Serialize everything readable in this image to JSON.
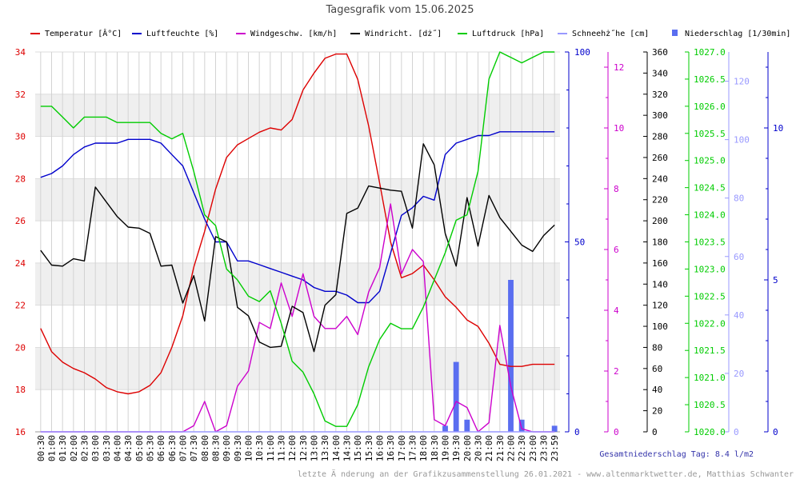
{
  "title": "Tagesgrafik vom 15.06.2025",
  "footer_total": "Gesamtniederschlag Tag: 8.4 l/m2",
  "footer_note": "letzte Ä nderung an der Grafikzusammenstellung 26.01.2021 - www.altenmarktwetter.de, Matthias Schwanter",
  "chart_data": {
    "type": "line",
    "legend_position": "top",
    "grid": true,
    "x": [
      "00:30",
      "01:00",
      "01:30",
      "02:00",
      "02:30",
      "03:00",
      "03:30",
      "04:00",
      "04:30",
      "05:00",
      "05:30",
      "06:00",
      "06:30",
      "07:00",
      "07:30",
      "08:00",
      "08:30",
      "09:00",
      "09:30",
      "10:00",
      "10:30",
      "11:00",
      "11:30",
      "12:00",
      "12:30",
      "13:00",
      "13:30",
      "14:00",
      "14:30",
      "15:00",
      "15:30",
      "16:00",
      "16:30",
      "17:00",
      "17:30",
      "18:00",
      "18:30",
      "19:00",
      "19:30",
      "20:00",
      "20:30",
      "21:00",
      "21:30",
      "22:00",
      "22:30",
      "23:00",
      "23:30",
      "23:59"
    ],
    "axes": [
      {
        "id": "temp",
        "color": "#dd0000",
        "min": 16,
        "max": 34,
        "ticks": [
          16,
          18,
          20,
          22,
          24,
          26,
          28,
          30,
          32,
          34
        ]
      },
      {
        "id": "hum",
        "color": "#0000cc",
        "min": 0,
        "max": 100,
        "ticks": [
          0,
          50,
          100
        ]
      },
      {
        "id": "wind",
        "color": "#cc00cc",
        "min": 0,
        "max": 12.5,
        "ticks": [
          0,
          2,
          4,
          6,
          8,
          10,
          12
        ]
      },
      {
        "id": "dir",
        "color": "#000000",
        "min": 0,
        "max": 360,
        "ticks": [
          0,
          20,
          40,
          60,
          80,
          100,
          120,
          140,
          160,
          180,
          200,
          220,
          240,
          260,
          280,
          300,
          320,
          340,
          360
        ]
      },
      {
        "id": "press",
        "color": "#00cc00",
        "min": 1020,
        "max": 1027,
        "ticks": [
          "1020.0",
          "1020.5",
          "1021.0",
          "1021.5",
          "1022.0",
          "1022.5",
          "1023.0",
          "1023.5",
          "1024.0",
          "1024.5",
          "1025.0",
          "1025.5",
          "1026.0",
          "1026.5",
          "1027.0"
        ]
      },
      {
        "id": "snow",
        "color": "#9999ff",
        "min": 0,
        "max": 130,
        "ticks": [
          0,
          20,
          40,
          60,
          80,
          100,
          120
        ]
      },
      {
        "id": "rain",
        "color": "#0000cc",
        "min": 0,
        "max": 12.5,
        "ticks": [
          0,
          5,
          10
        ]
      }
    ],
    "series": [
      {
        "name": "Temperatur [Â°C]",
        "axis": "temp",
        "color": "#dd0000",
        "values": [
          20.9,
          19.8,
          19.3,
          19.0,
          18.8,
          18.5,
          18.1,
          17.9,
          17.8,
          17.9,
          18.2,
          18.8,
          20.0,
          21.5,
          23.8,
          25.5,
          27.5,
          29.0,
          29.6,
          29.9,
          30.2,
          30.4,
          30.3,
          30.8,
          32.2,
          33.0,
          33.7,
          33.9,
          33.9,
          32.7,
          30.5,
          27.8,
          25.0,
          23.3,
          23.5,
          23.9,
          23.2,
          22.4,
          21.9,
          21.3,
          21.0,
          20.2,
          19.2,
          19.1,
          19.1,
          19.2,
          19.2,
          19.2
        ]
      },
      {
        "name": "Luftfeuchte [%]",
        "axis": "hum",
        "color": "#0000cc",
        "values": [
          67,
          68,
          70,
          73,
          75,
          76,
          76,
          76,
          77,
          77,
          77,
          76,
          73,
          70,
          63,
          56,
          50,
          50,
          45,
          45,
          44,
          43,
          42,
          41,
          40,
          38,
          37,
          37,
          36,
          34,
          34,
          37,
          47,
          57,
          59,
          62,
          61,
          73,
          76,
          77,
          78,
          78,
          79,
          79,
          79,
          79,
          79,
          79
        ]
      },
      {
        "name": "Windgeschw. [km/h]",
        "axis": "wind",
        "color": "#cc00cc",
        "values": [
          0,
          0,
          0,
          0,
          0,
          0,
          0,
          0,
          0,
          0,
          0,
          0,
          0,
          0,
          0.2,
          1.0,
          0,
          0.2,
          1.5,
          2.0,
          3.6,
          3.4,
          4.9,
          3.8,
          5.2,
          3.8,
          3.4,
          3.4,
          3.8,
          3.2,
          4.6,
          5.4,
          7.5,
          5.2,
          6.0,
          5.6,
          0.4,
          0.2,
          1.0,
          0.8,
          0,
          0.3,
          3.5,
          1.5,
          0.1,
          0,
          0,
          0
        ]
      },
      {
        "name": "Windricht. [dż˝]",
        "axis": "dir",
        "color": "#000000",
        "values": [
          172,
          158,
          157,
          164,
          162,
          232,
          218,
          204,
          194,
          193,
          188,
          157,
          158,
          122,
          148,
          105,
          185,
          180,
          118,
          110,
          85,
          80,
          81,
          119,
          113,
          76,
          120,
          130,
          207,
          212,
          233,
          231,
          229,
          228,
          193,
          273,
          253,
          188,
          157,
          222,
          176,
          224,
          203,
          190,
          177,
          171,
          186,
          196
        ]
      },
      {
        "name": "Luftdruck [hPa]",
        "axis": "press",
        "color": "#00cc00",
        "values": [
          1026.0,
          1026.0,
          1025.8,
          1025.6,
          1025.8,
          1025.8,
          1025.8,
          1025.7,
          1025.7,
          1025.7,
          1025.7,
          1025.5,
          1025.4,
          1025.5,
          1024.8,
          1024.0,
          1023.8,
          1023.0,
          1022.8,
          1022.5,
          1022.4,
          1022.6,
          1022.0,
          1021.3,
          1021.1,
          1020.7,
          1020.2,
          1020.1,
          1020.1,
          1020.5,
          1021.2,
          1021.7,
          1022.0,
          1021.9,
          1021.9,
          1022.3,
          1022.8,
          1023.3,
          1023.9,
          1024.0,
          1024.8,
          1026.5,
          1027.0,
          1026.9,
          1026.8,
          1026.9,
          1027.0,
          1027.0
        ]
      },
      {
        "name": "Schneehż˝he [cm]",
        "axis": "snow",
        "color": "#9999ff",
        "values": [
          0,
          0,
          0,
          0,
          0,
          0,
          0,
          0,
          0,
          0,
          0,
          0,
          0,
          0,
          0,
          0,
          0,
          0,
          0,
          0,
          0,
          0,
          0,
          0,
          0,
          0,
          0,
          0,
          0,
          0,
          0,
          0,
          0,
          0,
          0,
          0,
          0,
          0,
          0,
          0,
          0,
          0,
          0,
          0,
          0,
          0,
          0,
          0
        ]
      }
    ],
    "bars": {
      "name": "Niederschlag [1/30min]",
      "axis": "rain",
      "color": "#5a6ef0",
      "values": [
        0,
        0,
        0,
        0,
        0,
        0,
        0,
        0,
        0,
        0,
        0,
        0,
        0,
        0,
        0,
        0,
        0,
        0,
        0,
        0,
        0,
        0,
        0,
        0,
        0,
        0,
        0,
        0,
        0,
        0,
        0,
        0,
        0,
        0,
        0,
        0,
        0,
        0.2,
        2.3,
        0.4,
        0,
        0,
        0,
        5.0,
        0.4,
        0,
        0,
        0.2
      ]
    }
  }
}
